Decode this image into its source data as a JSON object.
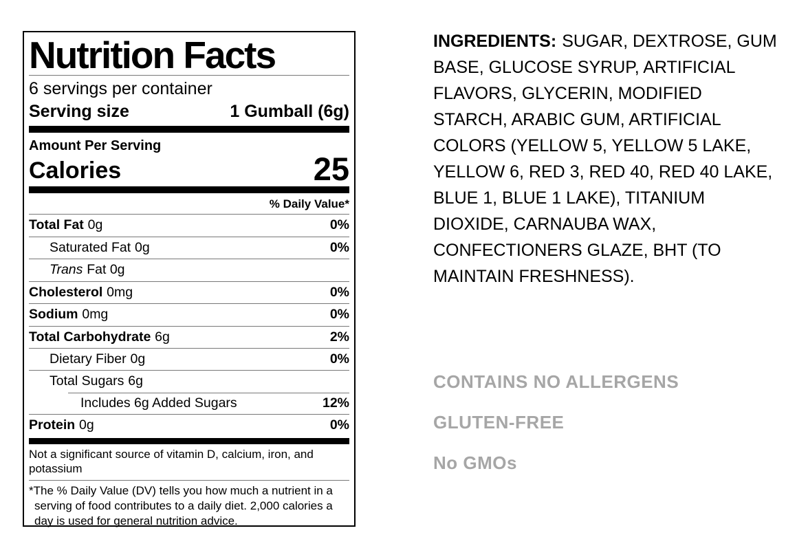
{
  "label": {
    "title": "Nutrition Facts",
    "servings_per_container": "6 servings per container",
    "serving_size_label": "Serving size",
    "serving_size_value": "1 Gumball (6g)",
    "amount_per_serving": "Amount Per Serving",
    "calories_label": "Calories",
    "calories_value": "25",
    "daily_value_header": "% Daily Value*",
    "rows": [
      {
        "name": "Total Fat",
        "amount": "0g",
        "dv": "0%"
      },
      {
        "name": "Saturated Fat",
        "amount": "0g",
        "dv": "0%"
      },
      {
        "name_italic": "Trans",
        "name_rest": "Fat 0g",
        "dv": ""
      },
      {
        "name": "Cholesterol",
        "amount": "0mg",
        "dv": "0%"
      },
      {
        "name": "Sodium",
        "amount": "0mg",
        "dv": "0%"
      },
      {
        "name": "Total Carbohydrate",
        "amount": "6g",
        "dv": "2%"
      },
      {
        "name": "Dietary Fiber",
        "amount": "0g",
        "dv": "0%"
      },
      {
        "name": "Total Sugars",
        "amount": "6g",
        "dv": ""
      },
      {
        "name": "Includes 6g Added Sugars",
        "amount": "",
        "dv": "12%"
      },
      {
        "name": "Protein",
        "amount": "0g",
        "dv": "0%"
      }
    ],
    "not_significant": "Not a significant source of vitamin D, calcium, iron, and potassium",
    "footnote": "*The % Daily Value (DV) tells you how much a nutrient in a serving of food contributes to a daily diet. 2,000 calories a day is used for general nutrition advice."
  },
  "ingredients": {
    "heading": "INGREDIENTS:",
    "body": "SUGAR, DEXTROSE, GUM BASE, GLUCOSE SYRUP, ARTIFICIAL FLAVORS, GLYCERIN, MODIFIED STARCH, ARABIC GUM, ARTIFICIAL COLORS (YELLOW 5, YELLOW 5 LAKE, YELLOW 6, RED 3, RED 40, RED 40 LAKE, BLUE 1, BLUE 1 LAKE), TITANIUM DIOXIDE, CARNAUBA WAX, CONFECTIONERS GLAZE, BHT (TO MAINTAIN FRESHNESS)."
  },
  "claims": [
    {
      "label": "CONTAINS NO ALLERGENS"
    },
    {
      "label": "GLUTEN-FREE"
    },
    {
      "label": "No GMOs"
    }
  ],
  "colors": {
    "claims_gray": "#a6a6a6",
    "text_black": "#000000"
  }
}
